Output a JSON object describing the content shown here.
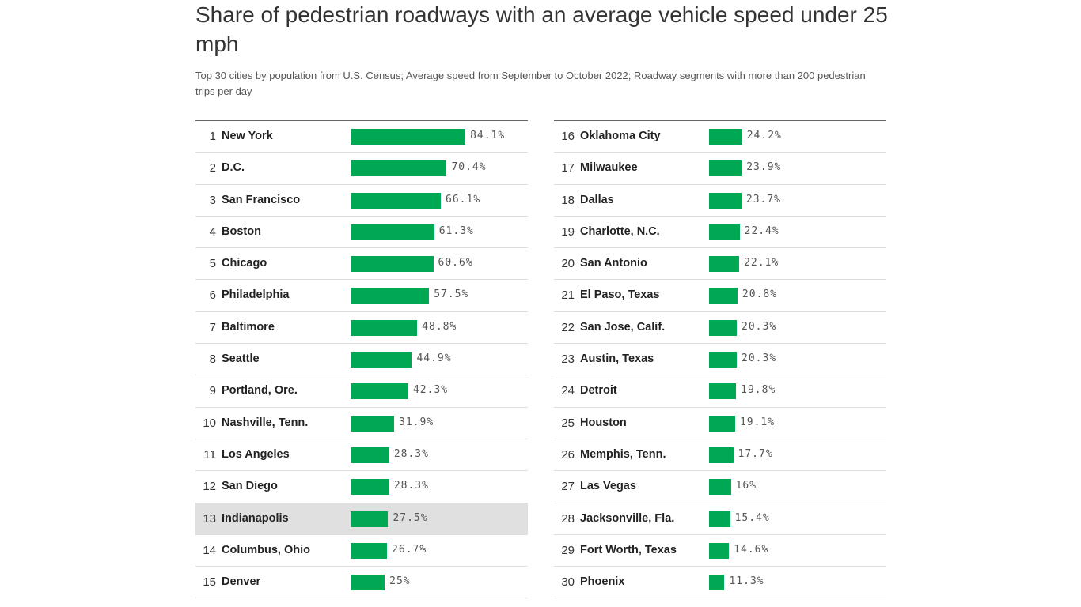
{
  "chart_data": {
    "type": "table",
    "title": "Share of pedestrian roadways with an average vehicle speed under 25 mph",
    "subtitle": "Top 30 cities by population from U.S. Census; Average speed from September to October 2022; Roadway segments with more than 200 pedestrian trips per day",
    "bar_color": "#00a854",
    "highlight_color": "#e0e0e0",
    "highlighted_rank": 13,
    "xlim": [
      0,
      100
    ],
    "rows": [
      {
        "rank": "1",
        "city": "New York",
        "value": 84.1,
        "label": "84.1%"
      },
      {
        "rank": "2",
        "city": "D.C.",
        "value": 70.4,
        "label": "70.4%"
      },
      {
        "rank": "3",
        "city": "San Francisco",
        "value": 66.1,
        "label": "66.1%"
      },
      {
        "rank": "4",
        "city": "Boston",
        "value": 61.3,
        "label": "61.3%"
      },
      {
        "rank": "5",
        "city": "Chicago",
        "value": 60.6,
        "label": "60.6%"
      },
      {
        "rank": "6",
        "city": "Philadelphia",
        "value": 57.5,
        "label": "57.5%"
      },
      {
        "rank": "7",
        "city": "Baltimore",
        "value": 48.8,
        "label": "48.8%"
      },
      {
        "rank": "8",
        "city": "Seattle",
        "value": 44.9,
        "label": "44.9%"
      },
      {
        "rank": "9",
        "city": "Portland, Ore.",
        "value": 42.3,
        "label": "42.3%"
      },
      {
        "rank": "10",
        "city": "Nashville, Tenn.",
        "value": 31.9,
        "label": "31.9%"
      },
      {
        "rank": "11",
        "city": "Los Angeles",
        "value": 28.3,
        "label": "28.3%"
      },
      {
        "rank": "12",
        "city": "San Diego",
        "value": 28.3,
        "label": "28.3%"
      },
      {
        "rank": "13",
        "city": "Indianapolis",
        "value": 27.5,
        "label": "27.5%"
      },
      {
        "rank": "14",
        "city": "Columbus, Ohio",
        "value": 26.7,
        "label": "26.7%"
      },
      {
        "rank": "15",
        "city": "Denver",
        "value": 25,
        "label": "25%"
      },
      {
        "rank": "16",
        "city": "Oklahoma City",
        "value": 24.2,
        "label": "24.2%"
      },
      {
        "rank": "17",
        "city": "Milwaukee",
        "value": 23.9,
        "label": "23.9%"
      },
      {
        "rank": "18",
        "city": "Dallas",
        "value": 23.7,
        "label": "23.7%"
      },
      {
        "rank": "19",
        "city": "Charlotte, N.C.",
        "value": 22.4,
        "label": "22.4%"
      },
      {
        "rank": "20",
        "city": "San Antonio",
        "value": 22.1,
        "label": "22.1%"
      },
      {
        "rank": "21",
        "city": "El Paso, Texas",
        "value": 20.8,
        "label": "20.8%"
      },
      {
        "rank": "22",
        "city": "San Jose, Calif.",
        "value": 20.3,
        "label": "20.3%"
      },
      {
        "rank": "23",
        "city": "Austin, Texas",
        "value": 20.3,
        "label": "20.3%"
      },
      {
        "rank": "24",
        "city": "Detroit",
        "value": 19.8,
        "label": "19.8%"
      },
      {
        "rank": "25",
        "city": "Houston",
        "value": 19.1,
        "label": "19.1%"
      },
      {
        "rank": "26",
        "city": "Memphis, Tenn.",
        "value": 17.7,
        "label": "17.7%"
      },
      {
        "rank": "27",
        "city": "Las Vegas",
        "value": 16,
        "label": "16%"
      },
      {
        "rank": "28",
        "city": "Jacksonville, Fla.",
        "value": 15.4,
        "label": "15.4%"
      },
      {
        "rank": "29",
        "city": "Fort Worth, Texas",
        "value": 14.6,
        "label": "14.6%"
      },
      {
        "rank": "30",
        "city": "Phoenix",
        "value": 11.3,
        "label": "11.3%"
      }
    ]
  }
}
